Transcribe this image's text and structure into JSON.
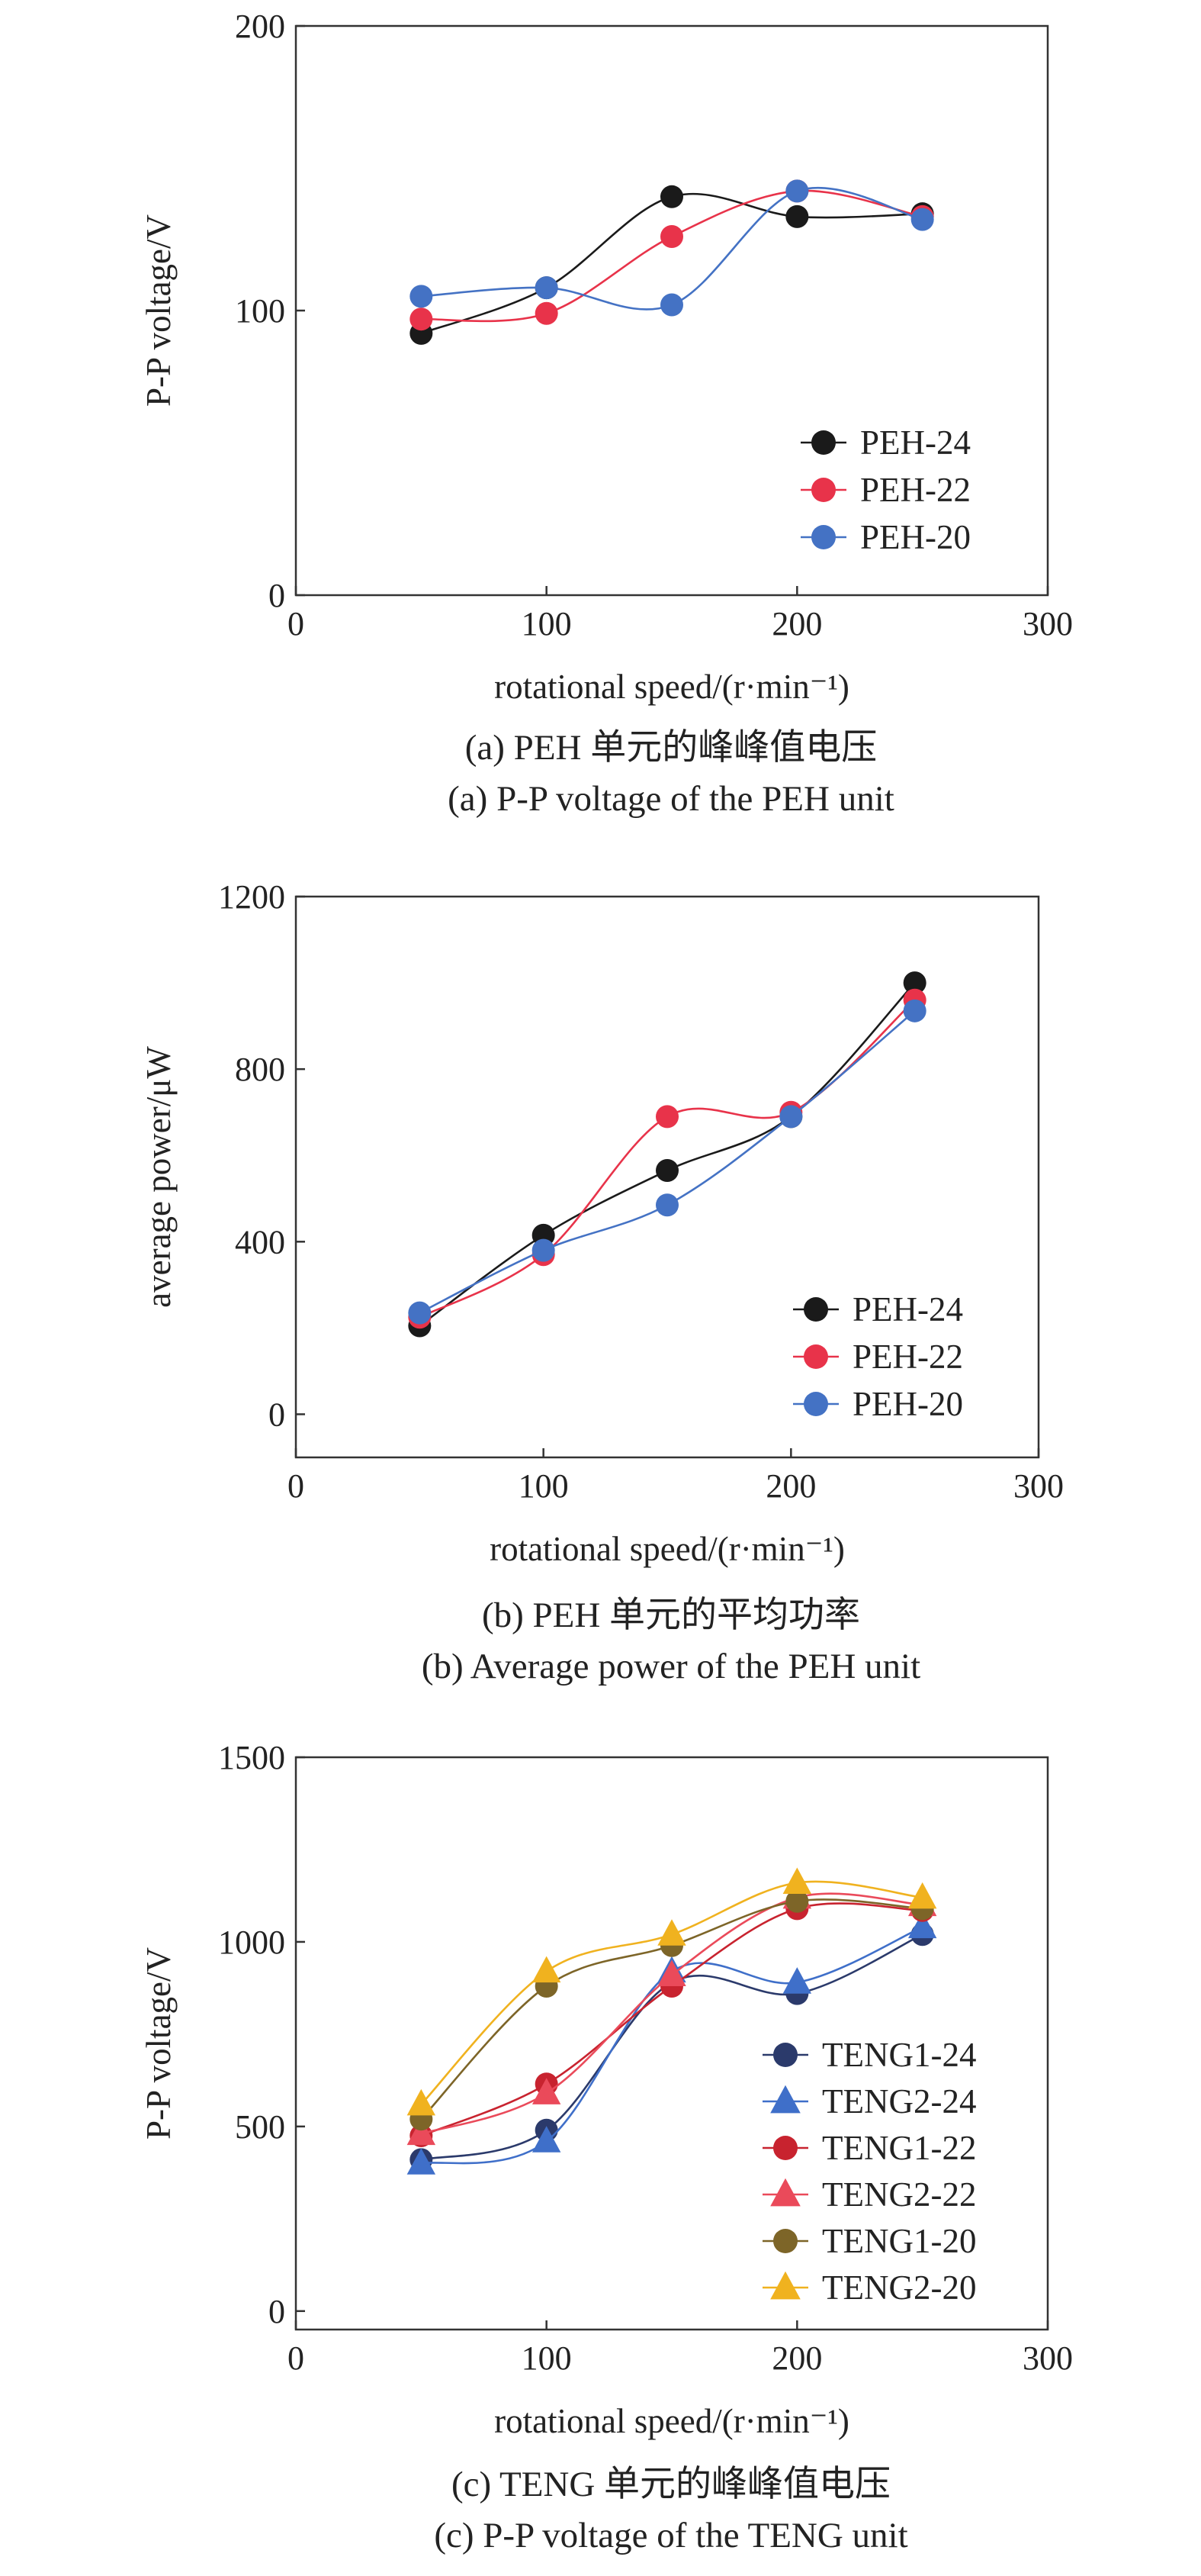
{
  "chart_data": [
    {
      "type": "line",
      "xlabel": "rotational speed/(r·min⁻¹)",
      "ylabel": "P-P voltage/V",
      "xlim": [
        0,
        300
      ],
      "ylim": [
        0,
        200
      ],
      "xticks": [
        0,
        100,
        200,
        300
      ],
      "yticks": [
        0,
        100,
        200
      ],
      "grid": false,
      "legend_position": "bottom-right",
      "caption_cn": "(a) PEH 单元的峰峰值电压",
      "caption_en": "(a) P-P voltage of the PEH unit",
      "x": [
        50,
        100,
        150,
        200,
        250
      ],
      "series": [
        {
          "name": "PEH-24",
          "color": "#1a1a1a",
          "marker": "circle",
          "values": [
            92,
            108,
            140,
            133,
            134
          ]
        },
        {
          "name": "PEH-22",
          "color": "#e8334a",
          "marker": "circle",
          "values": [
            97,
            99,
            126,
            142,
            133
          ]
        },
        {
          "name": "PEH-20",
          "color": "#4472c4",
          "marker": "circle",
          "values": [
            105,
            108,
            102,
            142,
            132
          ]
        }
      ]
    },
    {
      "type": "line",
      "xlabel": "rotational speed/(r·min⁻¹)",
      "ylabel": "average power/μW",
      "xlim": [
        0,
        300
      ],
      "ylim": [
        -100,
        1200
      ],
      "xticks": [
        0,
        100,
        200,
        300
      ],
      "yticks": [
        0,
        400,
        800,
        1200
      ],
      "grid": false,
      "legend_position": "bottom-right",
      "caption_cn": "(b) PEH 单元的平均功率",
      "caption_en": "(b) Average power of the PEH unit",
      "x": [
        50,
        100,
        150,
        200,
        250
      ],
      "series": [
        {
          "name": "PEH-24",
          "color": "#1a1a1a",
          "marker": "circle",
          "values": [
            205,
            415,
            565,
            690,
            1000
          ]
        },
        {
          "name": "PEH-22",
          "color": "#e8334a",
          "marker": "circle",
          "values": [
            225,
            370,
            690,
            700,
            960
          ]
        },
        {
          "name": "PEH-20",
          "color": "#4472c4",
          "marker": "circle",
          "values": [
            235,
            380,
            485,
            690,
            935
          ]
        }
      ]
    },
    {
      "type": "line",
      "xlabel": "rotational speed/(r·min⁻¹)",
      "ylabel": "P-P voltage/V",
      "xlim": [
        0,
        300
      ],
      "ylim": [
        -50,
        1500
      ],
      "xticks": [
        0,
        100,
        200,
        300
      ],
      "yticks": [
        0,
        500,
        1000,
        1500
      ],
      "grid": false,
      "legend_position": "bottom-right",
      "caption_cn": "(c) TENG 单元的峰峰值电压",
      "caption_en": "(c) P-P voltage of the TENG unit",
      "x": [
        50,
        100,
        150,
        200,
        250
      ],
      "series": [
        {
          "name": "TENG1-24",
          "color": "#2b3a6b",
          "marker": "circle",
          "values": [
            410,
            490,
            890,
            860,
            1020
          ]
        },
        {
          "name": "TENG2-24",
          "color": "#3f6fc9",
          "marker": "triangle",
          "values": [
            400,
            460,
            920,
            890,
            1040
          ]
        },
        {
          "name": "TENG1-22",
          "color": "#c8232f",
          "marker": "circle",
          "values": [
            475,
            615,
            880,
            1090,
            1085
          ]
        },
        {
          "name": "TENG2-22",
          "color": "#ea4a5a",
          "marker": "triangle",
          "values": [
            480,
            590,
            910,
            1120,
            1100
          ]
        },
        {
          "name": "TENG1-20",
          "color": "#7d6528",
          "marker": "circle",
          "values": [
            520,
            880,
            990,
            1110,
            1090
          ]
        },
        {
          "name": "TENG2-20",
          "color": "#f0b21f",
          "marker": "triangle",
          "values": [
            560,
            920,
            1020,
            1160,
            1120
          ]
        }
      ]
    }
  ]
}
